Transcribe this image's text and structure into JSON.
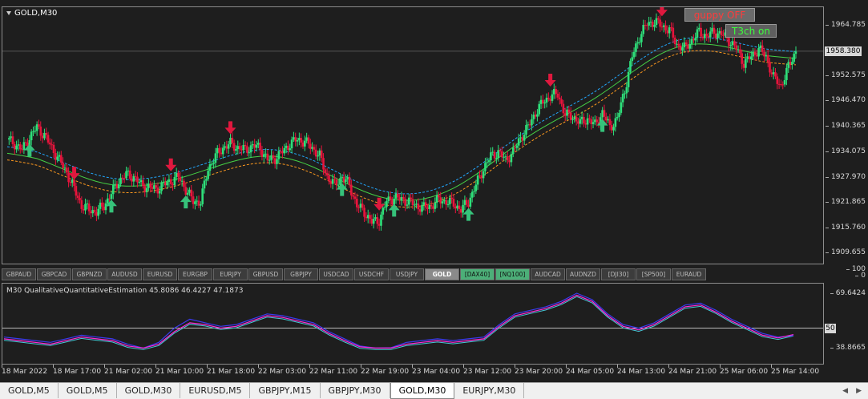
{
  "chart": {
    "symbol_label": "GOLD,M30",
    "guppy_label": "guppy OFF",
    "t3ch_label": "T3ch on",
    "current_price": "1958.380",
    "price_ticks": [
      "1964.785",
      "1952.575",
      "1946.470",
      "1940.365",
      "1934.075",
      "1927.970",
      "1921.865",
      "1915.760",
      "1909.655"
    ],
    "colors": {
      "bull": "#2ee07a",
      "bear": "#e8143c",
      "neutral": "#d8d8d8",
      "band_upper": "#22a8ff",
      "band_mid": "#45d045",
      "band_lower": "#ff9a1e",
      "arrow_up": "#36c27a",
      "arrow_down": "#e0183e"
    },
    "price_series": [
      {
        "value": 1937.0
      },
      {
        "value": 1936.0
      },
      {
        "value": 1934.5
      },
      {
        "value": 1937.5
      },
      {
        "value": 1940.0
      },
      {
        "value": 1938.0
      },
      {
        "value": 1935.0
      },
      {
        "value": 1932.0
      },
      {
        "value": 1929.0
      },
      {
        "value": 1925.0
      },
      {
        "value": 1921.0
      },
      {
        "value": 1920.0
      },
      {
        "value": 1919.5
      },
      {
        "value": 1921.0
      },
      {
        "value": 1924.0
      },
      {
        "value": 1927.0
      },
      {
        "value": 1928.5
      },
      {
        "value": 1928.0
      },
      {
        "value": 1926.0
      },
      {
        "value": 1925.5
      },
      {
        "value": 1925.0
      },
      {
        "value": 1926.0
      },
      {
        "value": 1927.0
      },
      {
        "value": 1928.0
      },
      {
        "value": 1925.0
      },
      {
        "value": 1922.0
      },
      {
        "value": 1922.0
      },
      {
        "value": 1930.0
      },
      {
        "value": 1933.0
      },
      {
        "value": 1935.0
      },
      {
        "value": 1936.0
      },
      {
        "value": 1935.0
      },
      {
        "value": 1934.5
      },
      {
        "value": 1935.5
      },
      {
        "value": 1935.0
      },
      {
        "value": 1932.0
      },
      {
        "value": 1932.5
      },
      {
        "value": 1934.0
      },
      {
        "value": 1936.0
      },
      {
        "value": 1937.0
      },
      {
        "value": 1936.5
      },
      {
        "value": 1935.0
      },
      {
        "value": 1933.0
      },
      {
        "value": 1928.0
      },
      {
        "value": 1926.0
      },
      {
        "value": 1928.0
      },
      {
        "value": 1926.0
      },
      {
        "value": 1921.0
      },
      {
        "value": 1919.5
      },
      {
        "value": 1917.0
      },
      {
        "value": 1917.5
      },
      {
        "value": 1922.0
      },
      {
        "value": 1923.0
      },
      {
        "value": 1922.5
      },
      {
        "value": 1922.0
      },
      {
        "value": 1921.0
      },
      {
        "value": 1920.5
      },
      {
        "value": 1921.0
      },
      {
        "value": 1922.5
      },
      {
        "value": 1922.0
      },
      {
        "value": 1921.5
      },
      {
        "value": 1920.0
      },
      {
        "value": 1922.0
      },
      {
        "value": 1926.0
      },
      {
        "value": 1930.0
      },
      {
        "value": 1933.0
      },
      {
        "value": 1934.0
      },
      {
        "value": 1932.0
      },
      {
        "value": 1934.0
      },
      {
        "value": 1937.5
      },
      {
        "value": 1940.0
      },
      {
        "value": 1943.5
      },
      {
        "value": 1946.0
      },
      {
        "value": 1947.5
      },
      {
        "value": 1948.0
      },
      {
        "value": 1943.0
      },
      {
        "value": 1942.5
      },
      {
        "value": 1941.0
      },
      {
        "value": 1942.0
      },
      {
        "value": 1940.5
      },
      {
        "value": 1943.5
      },
      {
        "value": 1940.0
      },
      {
        "value": 1942.0
      },
      {
        "value": 1949.0
      },
      {
        "value": 1957.0
      },
      {
        "value": 1962.0
      },
      {
        "value": 1965.0
      },
      {
        "value": 1965.5
      },
      {
        "value": 1964.5
      },
      {
        "value": 1963.5
      },
      {
        "value": 1960.0
      },
      {
        "value": 1959.0
      },
      {
        "value": 1961.0
      },
      {
        "value": 1963.0
      },
      {
        "value": 1962.0
      },
      {
        "value": 1963.0
      },
      {
        "value": 1962.5
      },
      {
        "value": 1961.0
      },
      {
        "value": 1959.0
      },
      {
        "value": 1955.5
      },
      {
        "value": 1957.0
      },
      {
        "value": 1959.0
      },
      {
        "value": 1957.0
      },
      {
        "value": 1952.0
      },
      {
        "value": 1950.0
      },
      {
        "value": 1954.5
      },
      {
        "value": 1958.5
      }
    ],
    "signals": [
      {
        "type": "up",
        "bar": 3
      },
      {
        "type": "down",
        "bar": 9
      },
      {
        "type": "up",
        "bar": 14
      },
      {
        "type": "down",
        "bar": 22
      },
      {
        "type": "up",
        "bar": 24
      },
      {
        "type": "down",
        "bar": 30
      },
      {
        "type": "down",
        "bar": 50
      },
      {
        "type": "up",
        "bar": 45
      },
      {
        "type": "up",
        "bar": 52
      },
      {
        "type": "up",
        "bar": 62
      },
      {
        "type": "down",
        "bar": 73
      },
      {
        "type": "up",
        "bar": 80
      },
      {
        "type": "down",
        "bar": 88
      }
    ]
  },
  "symbol_bar": [
    {
      "label": "GBPAUD",
      "state": "normal"
    },
    {
      "label": "GBPCAD",
      "state": "normal"
    },
    {
      "label": "GBPNZD",
      "state": "normal"
    },
    {
      "label": "AUDUSD",
      "state": "normal"
    },
    {
      "label": "EURUSD",
      "state": "normal"
    },
    {
      "label": "EURGBP",
      "state": "normal"
    },
    {
      "label": "EURJPY",
      "state": "normal"
    },
    {
      "label": "GBPUSD",
      "state": "normal"
    },
    {
      "label": "GBPJPY",
      "state": "normal"
    },
    {
      "label": "USDCAD",
      "state": "normal"
    },
    {
      "label": "USDCHF",
      "state": "normal"
    },
    {
      "label": "USDJPY",
      "state": "normal"
    },
    {
      "label": "GOLD",
      "state": "active"
    },
    {
      "label": "[DAX40]",
      "state": "green"
    },
    {
      "label": "[NQ100]",
      "state": "green"
    },
    {
      "label": "AUDCAD",
      "state": "normal"
    },
    {
      "label": "AUDNZD",
      "state": "normal"
    },
    {
      "label": "[DJI30]",
      "state": "normal"
    },
    {
      "label": "[SP500]",
      "state": "normal"
    },
    {
      "label": "EURAUD",
      "state": "normal"
    }
  ],
  "indicator": {
    "label": "M30 QualitativeQuantitativeEstimation 45.8086 46.4227 47.1873",
    "ticks": [
      "100",
      "69.6424",
      "50",
      "38.8665",
      "0"
    ],
    "colors": {
      "line1": "#3a3af0",
      "line2": "#ff2bd6",
      "line3": "#45c8d8",
      "level": "#bbbbbb"
    },
    "series_a": [
      {
        "value": 45
      },
      {
        "value": 44
      },
      {
        "value": 43
      },
      {
        "value": 42
      },
      {
        "value": 44
      },
      {
        "value": 46
      },
      {
        "value": 45
      },
      {
        "value": 44
      },
      {
        "value": 41
      },
      {
        "value": 38.8
      },
      {
        "value": 42
      },
      {
        "value": 50
      },
      {
        "value": 55
      },
      {
        "value": 53
      },
      {
        "value": 51
      },
      {
        "value": 52
      },
      {
        "value": 55
      },
      {
        "value": 58
      },
      {
        "value": 57
      },
      {
        "value": 55
      },
      {
        "value": 53
      },
      {
        "value": 48
      },
      {
        "value": 44
      },
      {
        "value": 40
      },
      {
        "value": 38.8
      },
      {
        "value": 39
      },
      {
        "value": 42
      },
      {
        "value": 43
      },
      {
        "value": 44
      },
      {
        "value": 43
      },
      {
        "value": 44
      },
      {
        "value": 45
      },
      {
        "value": 52
      },
      {
        "value": 58
      },
      {
        "value": 60
      },
      {
        "value": 62
      },
      {
        "value": 65
      },
      {
        "value": 69.6
      },
      {
        "value": 66
      },
      {
        "value": 58
      },
      {
        "value": 52
      },
      {
        "value": 50
      },
      {
        "value": 53
      },
      {
        "value": 58
      },
      {
        "value": 63
      },
      {
        "value": 64
      },
      {
        "value": 60
      },
      {
        "value": 55
      },
      {
        "value": 51
      },
      {
        "value": 47
      },
      {
        "value": 45
      },
      {
        "value": 45.8
      }
    ],
    "series_b": [
      {
        "value": 44
      },
      {
        "value": 43
      },
      {
        "value": 42
      },
      {
        "value": 41
      },
      {
        "value": 43
      },
      {
        "value": 45
      },
      {
        "value": 44
      },
      {
        "value": 43
      },
      {
        "value": 40
      },
      {
        "value": 38.8
      },
      {
        "value": 41
      },
      {
        "value": 48
      },
      {
        "value": 53
      },
      {
        "value": 52
      },
      {
        "value": 50
      },
      {
        "value": 51
      },
      {
        "value": 54
      },
      {
        "value": 57
      },
      {
        "value": 56
      },
      {
        "value": 54
      },
      {
        "value": 52
      },
      {
        "value": 47
      },
      {
        "value": 43
      },
      {
        "value": 39.5
      },
      {
        "value": 38.8
      },
      {
        "value": 38.8
      },
      {
        "value": 41
      },
      {
        "value": 42
      },
      {
        "value": 43
      },
      {
        "value": 42
      },
      {
        "value": 43
      },
      {
        "value": 44
      },
      {
        "value": 51
      },
      {
        "value": 57
      },
      {
        "value": 59
      },
      {
        "value": 61
      },
      {
        "value": 64
      },
      {
        "value": 68.5
      },
      {
        "value": 65
      },
      {
        "value": 57
      },
      {
        "value": 51
      },
      {
        "value": 49
      },
      {
        "value": 52
      },
      {
        "value": 57
      },
      {
        "value": 62
      },
      {
        "value": 63
      },
      {
        "value": 59
      },
      {
        "value": 54
      },
      {
        "value": 50
      },
      {
        "value": 46
      },
      {
        "value": 44.5
      },
      {
        "value": 46.4
      }
    ]
  },
  "time_labels": [
    "18 Mar 2022",
    "18 Mar 17:00",
    "21 Mar 02:00",
    "21 Mar 10:00",
    "21 Mar 18:00",
    "22 Mar 03:00",
    "22 Mar 11:00",
    "22 Mar 19:00",
    "23 Mar 04:00",
    "23 Mar 12:00",
    "23 Mar 20:00",
    "24 Mar 05:00",
    "24 Mar 13:00",
    "24 Mar 21:00",
    "25 Mar 06:00",
    "25 Mar 14:00"
  ],
  "tabs": [
    {
      "label": "GOLD,M5",
      "active": false
    },
    {
      "label": "GOLD,M5",
      "active": false
    },
    {
      "label": "GOLD,M30",
      "active": false
    },
    {
      "label": "EURUSD,M5",
      "active": false
    },
    {
      "label": "GBPJPY,M15",
      "active": false
    },
    {
      "label": "GBPJPY,M30",
      "active": false
    },
    {
      "label": "GOLD,M30",
      "active": true
    },
    {
      "label": "EURJPY,M30",
      "active": false
    }
  ]
}
